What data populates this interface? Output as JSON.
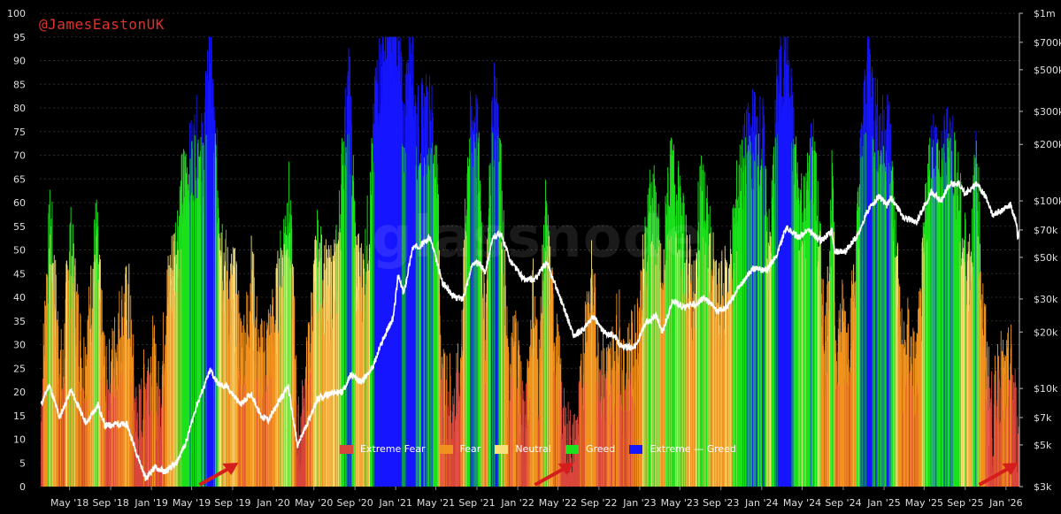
{
  "handle": "@JamesEastonUK",
  "watermark": "glassnode",
  "colors": {
    "extreme_fear": "#d9463b",
    "fear": "#f0921e",
    "neutral": "#f9e27b",
    "greed": "#1be21b",
    "extreme_greed": "#1616ff",
    "price_line": "#ffffff",
    "background": "#000000",
    "arrow": "#d61d1d"
  },
  "legend": [
    {
      "label": "Extreme Fear",
      "color": "#d9463b"
    },
    {
      "label": "Fear",
      "color": "#f0921e"
    },
    {
      "label": "Neutral",
      "color": "#f9e27b"
    },
    {
      "label": "Greed",
      "color": "#1be21b"
    },
    {
      "label": "Extreme — Greed",
      "color": "#1616ff"
    }
  ],
  "chart_data": {
    "type": "bar",
    "title": "",
    "xlabel": "",
    "ylabel": "",
    "x_tick_labels": [
      "May '18",
      "Sep '18",
      "Jan '19",
      "May '19",
      "Sep '19",
      "Jan '20",
      "May '20",
      "Sep '20",
      "Jan '21",
      "May '21",
      "Sep '21",
      "Jan '22",
      "May '22",
      "Sep '22",
      "Jan '23",
      "May '23",
      "Sep '23",
      "Jan '24",
      "May '24",
      "Sep '24",
      "Jan '25",
      "May '25",
      "Sep '25",
      "Jan '26"
    ],
    "y_left_ticks": [
      0,
      5,
      10,
      15,
      20,
      25,
      30,
      35,
      40,
      45,
      50,
      55,
      60,
      65,
      70,
      75,
      80,
      85,
      90,
      95,
      100
    ],
    "y_left_range": [
      0,
      100
    ],
    "y_right_ticks": [
      "$3k",
      "$5k",
      "$7k",
      "$10k",
      "$20k",
      "$30k",
      "$50k",
      "$70k",
      "$100k",
      "$200k",
      "$300k",
      "$500k",
      "$700k",
      "$1m"
    ],
    "y_right_scale": "log",
    "y_right_range": [
      3000,
      1000000
    ],
    "x_range": [
      "2018-02-01",
      "2026-02-10"
    ],
    "zone_thresholds": {
      "extreme_fear_max": 25,
      "fear_max": 46,
      "neutral_max": 54,
      "greed_max": 75
    },
    "grid": true,
    "legend_position": "bottom-center",
    "series": [
      {
        "name": "Extreme Fear",
        "kind": "fear_greed_index",
        "points": [
          [
            "2018-02-05",
            14
          ],
          [
            "2018-02-20",
            40
          ],
          [
            "2018-03-05",
            55
          ],
          [
            "2018-03-25",
            33
          ],
          [
            "2018-04-10",
            20
          ],
          [
            "2018-05-01",
            52
          ],
          [
            "2018-05-20",
            38
          ],
          [
            "2018-06-10",
            24
          ],
          [
            "2018-06-25",
            30
          ],
          [
            "2018-07-20",
            53
          ],
          [
            "2018-08-05",
            32
          ],
          [
            "2018-08-20",
            18
          ],
          [
            "2018-09-10",
            26
          ],
          [
            "2018-10-01",
            34
          ],
          [
            "2018-10-25",
            38
          ],
          [
            "2018-11-15",
            14
          ],
          [
            "2018-11-28",
            12
          ],
          [
            "2018-12-15",
            22
          ],
          [
            "2019-01-05",
            26
          ],
          [
            "2019-01-25",
            15
          ],
          [
            "2019-02-15",
            38
          ],
          [
            "2019-03-10",
            48
          ],
          [
            "2019-04-05",
            62
          ],
          [
            "2019-04-25",
            66
          ],
          [
            "2019-05-15",
            72
          ],
          [
            "2019-06-05",
            68
          ],
          [
            "2019-06-25",
            95
          ],
          [
            "2019-07-10",
            70
          ],
          [
            "2019-08-05",
            48
          ],
          [
            "2019-08-20",
            40
          ],
          [
            "2019-09-05",
            42
          ],
          [
            "2019-09-25",
            28
          ],
          [
            "2019-10-10",
            30
          ],
          [
            "2019-10-28",
            44
          ],
          [
            "2019-11-20",
            24
          ],
          [
            "2019-12-10",
            28
          ],
          [
            "2020-01-05",
            34
          ],
          [
            "2020-01-25",
            46
          ],
          [
            "2020-02-15",
            60
          ],
          [
            "2020-03-01",
            38
          ],
          [
            "2020-03-14",
            8
          ],
          [
            "2020-03-30",
            14
          ],
          [
            "2020-04-20",
            30
          ],
          [
            "2020-05-10",
            48
          ],
          [
            "2020-05-25",
            44
          ],
          [
            "2020-06-15",
            40
          ],
          [
            "2020-07-10",
            46
          ],
          [
            "2020-07-28",
            70
          ],
          [
            "2020-08-15",
            84
          ],
          [
            "2020-09-05",
            45
          ],
          [
            "2020-09-25",
            42
          ],
          [
            "2020-10-15",
            56
          ],
          [
            "2020-11-05",
            84
          ],
          [
            "2020-11-25",
            90
          ],
          [
            "2020-12-15",
            92
          ],
          [
            "2021-01-05",
            95
          ],
          [
            "2021-01-25",
            74
          ],
          [
            "2021-02-15",
            95
          ],
          [
            "2021-03-05",
            74
          ],
          [
            "2021-03-25",
            76
          ],
          [
            "2021-04-15",
            78
          ],
          [
            "2021-05-05",
            64
          ],
          [
            "2021-05-20",
            18
          ],
          [
            "2021-06-10",
            20
          ],
          [
            "2021-06-25",
            14
          ],
          [
            "2021-07-15",
            24
          ],
          [
            "2021-08-05",
            70
          ],
          [
            "2021-08-25",
            78
          ],
          [
            "2021-09-10",
            64
          ],
          [
            "2021-09-25",
            30
          ],
          [
            "2021-10-15",
            74
          ],
          [
            "2021-11-01",
            84
          ],
          [
            "2021-11-20",
            48
          ],
          [
            "2021-12-05",
            18
          ],
          [
            "2021-12-25",
            32
          ],
          [
            "2022-01-10",
            20
          ],
          [
            "2022-01-25",
            10
          ],
          [
            "2022-02-15",
            40
          ],
          [
            "2022-03-05",
            22
          ],
          [
            "2022-03-25",
            55
          ],
          [
            "2022-04-15",
            36
          ],
          [
            "2022-05-05",
            22
          ],
          [
            "2022-05-20",
            10
          ],
          [
            "2022-06-10",
            7
          ],
          [
            "2022-06-20",
            6
          ],
          [
            "2022-07-10",
            18
          ],
          [
            "2022-07-25",
            36
          ],
          [
            "2022-08-12",
            42
          ],
          [
            "2022-08-30",
            26
          ],
          [
            "2022-09-20",
            22
          ],
          [
            "2022-10-10",
            24
          ],
          [
            "2022-10-30",
            34
          ],
          [
            "2022-11-12",
            20
          ],
          [
            "2022-11-30",
            26
          ],
          [
            "2022-12-20",
            28
          ],
          [
            "2023-01-15",
            46
          ],
          [
            "2023-01-30",
            60
          ],
          [
            "2023-02-20",
            56
          ],
          [
            "2023-03-10",
            36
          ],
          [
            "2023-03-25",
            62
          ],
          [
            "2023-04-15",
            64
          ],
          [
            "2023-05-05",
            54
          ],
          [
            "2023-05-25",
            46
          ],
          [
            "2023-06-15",
            36
          ],
          [
            "2023-07-01",
            64
          ],
          [
            "2023-07-25",
            52
          ],
          [
            "2023-08-20",
            36
          ],
          [
            "2023-09-10",
            40
          ],
          [
            "2023-10-01",
            46
          ],
          [
            "2023-10-20",
            60
          ],
          [
            "2023-11-10",
            68
          ],
          [
            "2023-12-05",
            74
          ],
          [
            "2024-01-05",
            72
          ],
          [
            "2024-01-25",
            46
          ],
          [
            "2024-02-15",
            80
          ],
          [
            "2024-03-10",
            90
          ],
          [
            "2024-03-25",
            82
          ],
          [
            "2024-04-20",
            60
          ],
          [
            "2024-05-10",
            56
          ],
          [
            "2024-06-01",
            72
          ],
          [
            "2024-06-25",
            46
          ],
          [
            "2024-07-10",
            28
          ],
          [
            "2024-07-30",
            62
          ],
          [
            "2024-08-10",
            28
          ],
          [
            "2024-08-30",
            34
          ],
          [
            "2024-09-15",
            30
          ],
          [
            "2024-10-05",
            40
          ],
          [
            "2024-10-25",
            70
          ],
          [
            "2024-11-15",
            90
          ],
          [
            "2024-12-05",
            78
          ],
          [
            "2024-12-25",
            72
          ],
          [
            "2025-01-15",
            76
          ],
          [
            "2025-02-05",
            50
          ],
          [
            "2025-02-25",
            25
          ],
          [
            "2025-03-15",
            30
          ],
          [
            "2025-04-05",
            22
          ],
          [
            "2025-04-20",
            34
          ],
          [
            "2025-05-10",
            62
          ],
          [
            "2025-05-30",
            72
          ],
          [
            "2025-06-20",
            64
          ],
          [
            "2025-07-15",
            74
          ],
          [
            "2025-08-05",
            66
          ],
          [
            "2025-08-25",
            50
          ],
          [
            "2025-09-15",
            46
          ],
          [
            "2025-10-05",
            68
          ],
          [
            "2025-10-20",
            40
          ],
          [
            "2025-11-05",
            24
          ],
          [
            "2025-11-22",
            12
          ],
          [
            "2025-12-10",
            24
          ],
          [
            "2025-12-30",
            20
          ],
          [
            "2026-01-15",
            25
          ],
          [
            "2026-01-28",
            16
          ],
          [
            "2026-02-05",
            6
          ],
          [
            "2026-02-10",
            8
          ]
        ]
      },
      {
        "name": "price",
        "kind": "btc_price_usd",
        "points": [
          [
            "2018-02-05",
            8200
          ],
          [
            "2018-03-01",
            10500
          ],
          [
            "2018-04-01",
            7000
          ],
          [
            "2018-05-05",
            9800
          ],
          [
            "2018-06-20",
            6500
          ],
          [
            "2018-07-25",
            8200
          ],
          [
            "2018-08-15",
            6300
          ],
          [
            "2018-09-20",
            6500
          ],
          [
            "2018-10-20",
            6400
          ],
          [
            "2018-11-20",
            4400
          ],
          [
            "2018-12-15",
            3300
          ],
          [
            "2019-01-10",
            3800
          ],
          [
            "2019-02-10",
            3600
          ],
          [
            "2019-03-15",
            3950
          ],
          [
            "2019-04-15",
            5200
          ],
          [
            "2019-05-15",
            8000
          ],
          [
            "2019-06-26",
            12500
          ],
          [
            "2019-07-20",
            10500
          ],
          [
            "2019-08-15",
            10200
          ],
          [
            "2019-09-25",
            8200
          ],
          [
            "2019-10-26",
            9400
          ],
          [
            "2019-11-25",
            7100
          ],
          [
            "2019-12-18",
            6800
          ],
          [
            "2020-01-20",
            8700
          ],
          [
            "2020-02-14",
            10300
          ],
          [
            "2020-03-13",
            4900
          ],
          [
            "2020-04-15",
            6800
          ],
          [
            "2020-05-10",
            8700
          ],
          [
            "2020-06-15",
            9400
          ],
          [
            "2020-07-25",
            9600
          ],
          [
            "2020-08-20",
            11800
          ],
          [
            "2020-09-20",
            10800
          ],
          [
            "2020-10-25",
            13100
          ],
          [
            "2020-11-25",
            18500
          ],
          [
            "2020-12-25",
            24000
          ],
          [
            "2021-01-08",
            40000
          ],
          [
            "2021-01-25",
            32000
          ],
          [
            "2021-02-20",
            56000
          ],
          [
            "2021-03-15",
            58000
          ],
          [
            "2021-04-14",
            63500
          ],
          [
            "2021-05-20",
            37000
          ],
          [
            "2021-06-22",
            31000
          ],
          [
            "2021-07-20",
            30000
          ],
          [
            "2021-08-20",
            47000
          ],
          [
            "2021-09-10",
            46000
          ],
          [
            "2021-09-25",
            42000
          ],
          [
            "2021-10-20",
            64000
          ],
          [
            "2021-11-10",
            67500
          ],
          [
            "2021-12-10",
            48000
          ],
          [
            "2022-01-20",
            38000
          ],
          [
            "2022-02-20",
            38000
          ],
          [
            "2022-03-28",
            47000
          ],
          [
            "2022-05-10",
            30000
          ],
          [
            "2022-06-18",
            19000
          ],
          [
            "2022-07-15",
            20500
          ],
          [
            "2022-08-15",
            24200
          ],
          [
            "2022-09-15",
            20000
          ],
          [
            "2022-10-15",
            19200
          ],
          [
            "2022-11-10",
            16500
          ],
          [
            "2022-12-20",
            16800
          ],
          [
            "2023-01-20",
            22500
          ],
          [
            "2023-02-20",
            24500
          ],
          [
            "2023-03-10",
            20000
          ],
          [
            "2023-04-10",
            29500
          ],
          [
            "2023-05-15",
            27000
          ],
          [
            "2023-06-20",
            28500
          ],
          [
            "2023-07-15",
            30300
          ],
          [
            "2023-08-20",
            26000
          ],
          [
            "2023-09-15",
            26600
          ],
          [
            "2023-10-25",
            34500
          ],
          [
            "2023-12-05",
            43500
          ],
          [
            "2024-01-15",
            42500
          ],
          [
            "2024-02-15",
            51500
          ],
          [
            "2024-03-14",
            72000
          ],
          [
            "2024-04-20",
            64000
          ],
          [
            "2024-05-20",
            70000
          ],
          [
            "2024-06-25",
            61000
          ],
          [
            "2024-07-29",
            69000
          ],
          [
            "2024-08-05",
            54000
          ],
          [
            "2024-09-06",
            53500
          ],
          [
            "2024-10-15",
            66000
          ],
          [
            "2024-11-12",
            88000
          ],
          [
            "2024-12-17",
            106000
          ],
          [
            "2025-01-10",
            94000
          ],
          [
            "2025-01-22",
            104000
          ],
          [
            "2025-02-28",
            82000
          ],
          [
            "2025-04-08",
            77000
          ],
          [
            "2025-05-22",
            111000
          ],
          [
            "2025-06-22",
            101000
          ],
          [
            "2025-07-14",
            121000
          ],
          [
            "2025-08-14",
            123000
          ],
          [
            "2025-09-01",
            108000
          ],
          [
            "2025-10-06",
            125000
          ],
          [
            "2025-11-05",
            102000
          ],
          [
            "2025-11-21",
            84000
          ],
          [
            "2025-12-15",
            88000
          ],
          [
            "2026-01-14",
            95000
          ],
          [
            "2026-01-31",
            78000
          ],
          [
            "2026-02-05",
            64000
          ],
          [
            "2026-02-10",
            69000
          ]
        ]
      }
    ],
    "annotations": [
      {
        "type": "arrow",
        "target": "2019-09-18",
        "label": ""
      },
      {
        "type": "arrow",
        "target": "2022-06-18",
        "label": ""
      },
      {
        "type": "arrow",
        "target": "2026-02-06",
        "label": ""
      }
    ]
  }
}
